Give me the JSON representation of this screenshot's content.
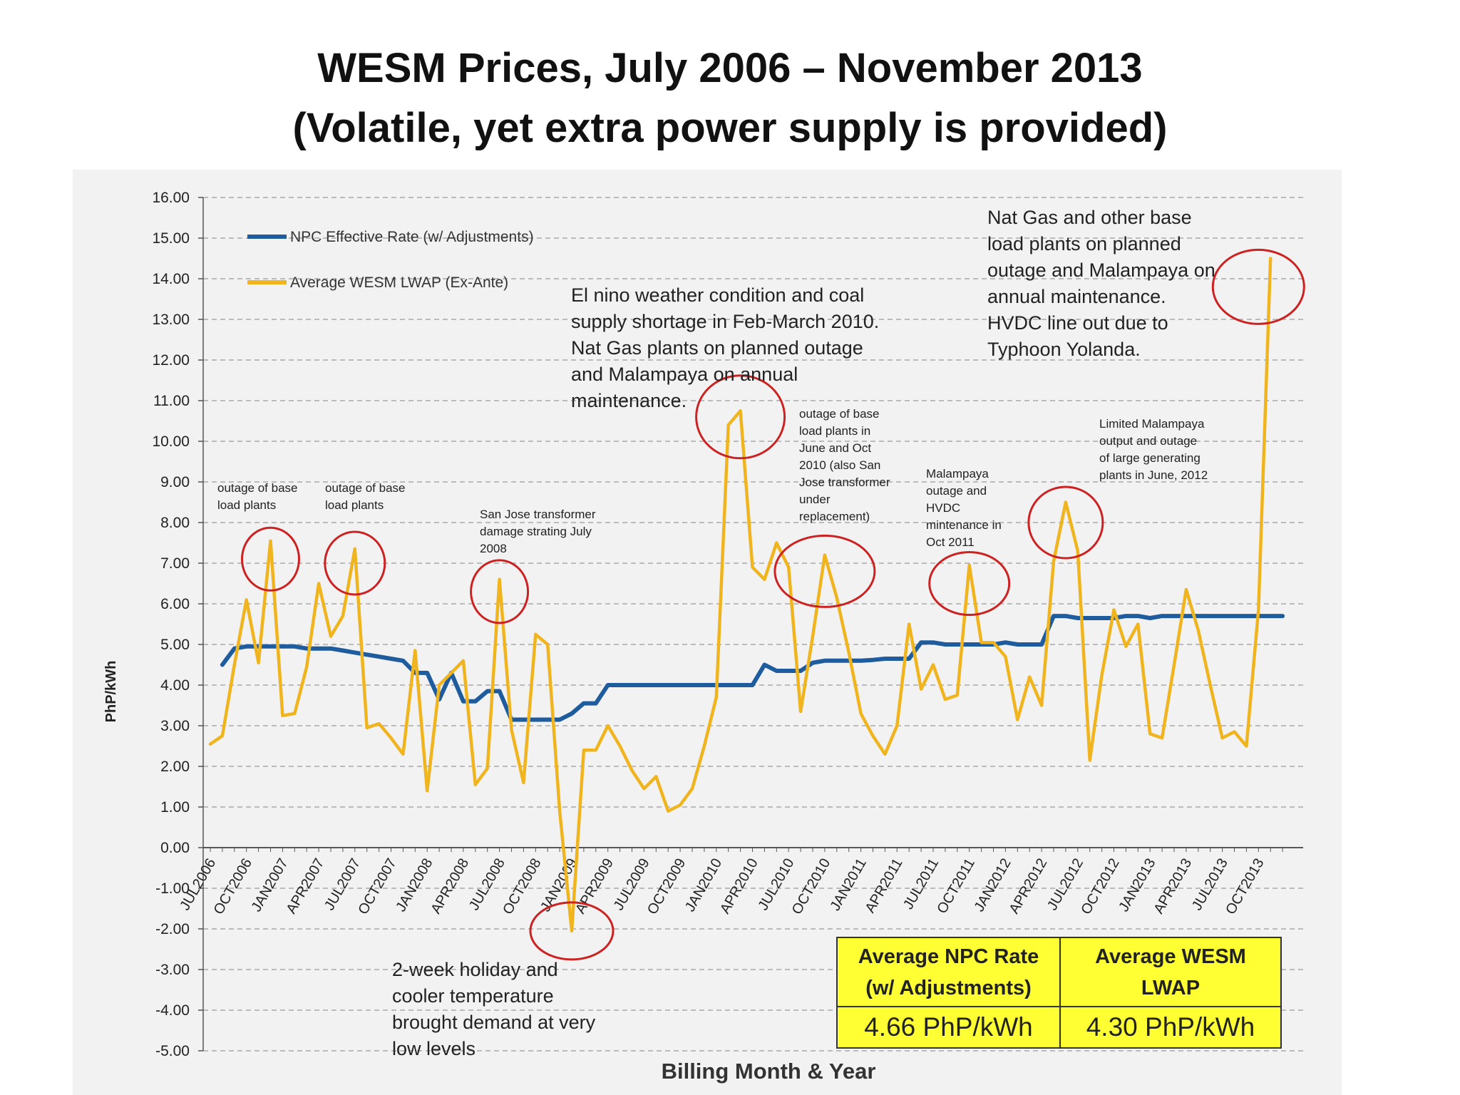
{
  "title": {
    "line1": "WESM Prices, July 2006 – November 2013",
    "line2": "(Volatile, yet extra power supply is provided)"
  },
  "colors": {
    "npc": "#1f5c9e",
    "wesm": "#f0b41e",
    "circle": "#cc2222",
    "table_bg": "#ffff33"
  },
  "chart_data": {
    "type": "line",
    "title": "WESM Prices, July 2006 – November 2013",
    "xlabel": "Billing Month & Year",
    "ylabel": "PhP/kWh",
    "ylim": [
      -5,
      16
    ],
    "yticks": [
      "16.00",
      "15.00",
      "14.00",
      "13.00",
      "12.00",
      "11.00",
      "10.00",
      "9.00",
      "8.00",
      "7.00",
      "6.00",
      "5.00",
      "4.00",
      "3.00",
      "2.00",
      "1.00",
      "0.00",
      "-1.00",
      "-2.00",
      "-3.00",
      "-4.00",
      "-5.00"
    ],
    "x_tick_labels": [
      {
        "index": 0,
        "label": "JUL2006"
      },
      {
        "index": 3,
        "label": "OCT2006"
      },
      {
        "index": 6,
        "label": "JAN2007"
      },
      {
        "index": 9,
        "label": "APR2007"
      },
      {
        "index": 12,
        "label": "JUL2007"
      },
      {
        "index": 15,
        "label": "OCT2007"
      },
      {
        "index": 18,
        "label": "JAN2008"
      },
      {
        "index": 21,
        "label": "APR2008"
      },
      {
        "index": 24,
        "label": "JUL2008"
      },
      {
        "index": 27,
        "label": "OCT2008"
      },
      {
        "index": 30,
        "label": "JAN2009"
      },
      {
        "index": 33,
        "label": "APR2009"
      },
      {
        "index": 36,
        "label": "JUL2009"
      },
      {
        "index": 39,
        "label": "OCT2009"
      },
      {
        "index": 42,
        "label": "JAN2010"
      },
      {
        "index": 45,
        "label": "APR2010"
      },
      {
        "index": 48,
        "label": "JUL2010"
      },
      {
        "index": 51,
        "label": "OCT2010"
      },
      {
        "index": 54,
        "label": "JAN2011"
      },
      {
        "index": 57,
        "label": "APR2011"
      },
      {
        "index": 60,
        "label": "JUL2011"
      },
      {
        "index": 63,
        "label": "OCT2011"
      },
      {
        "index": 66,
        "label": "JAN2012"
      },
      {
        "index": 69,
        "label": "APR2012"
      },
      {
        "index": 72,
        "label": "JUL2012"
      },
      {
        "index": 75,
        "label": "OCT2012"
      },
      {
        "index": 78,
        "label": "JAN2013"
      },
      {
        "index": 81,
        "label": "APR2013"
      },
      {
        "index": 84,
        "label": "JUL2013"
      },
      {
        "index": 87,
        "label": "OCT2013"
      }
    ],
    "legend_position": "top-left",
    "grid": "horizontal dashed",
    "series": [
      {
        "name": "NPC Effective Rate (w/ Adjustments)",
        "start": 1,
        "values": [
          4.5,
          4.9,
          4.95,
          4.95,
          4.95,
          4.95,
          4.95,
          4.9,
          4.9,
          4.9,
          4.85,
          4.8,
          4.75,
          4.7,
          4.65,
          4.6,
          4.3,
          4.3,
          3.65,
          4.3,
          3.6,
          3.6,
          3.85,
          3.85,
          3.15,
          3.15,
          3.15,
          3.15,
          3.15,
          3.3,
          3.55,
          3.55,
          4.0,
          4.0,
          4.0,
          4.0,
          4.0,
          4.0,
          4.0,
          4.0,
          4.0,
          4.0,
          4.0,
          4.0,
          4.0,
          4.5,
          4.35,
          4.35,
          4.35,
          4.55,
          4.6,
          4.6,
          4.6,
          4.6,
          4.62,
          4.65,
          4.65,
          4.65,
          5.05,
          5.05,
          5.0,
          5.0,
          5.0,
          5.0,
          5.0,
          5.05,
          5.0,
          5.0,
          5.0,
          5.7,
          5.7,
          5.65,
          5.65,
          5.65,
          5.65,
          5.7,
          5.7,
          5.65,
          5.7,
          5.7,
          5.7,
          5.7,
          5.7,
          5.7,
          5.7,
          5.7,
          5.7,
          5.7,
          5.7
        ]
      },
      {
        "name": "Average WESM LWAP (Ex-Ante)",
        "start": 0,
        "values": [
          2.55,
          2.75,
          4.5,
          6.1,
          4.55,
          7.55,
          3.25,
          3.3,
          4.45,
          6.5,
          5.2,
          5.7,
          7.35,
          2.95,
          3.05,
          2.7,
          2.3,
          4.85,
          1.4,
          4.0,
          4.3,
          4.6,
          1.55,
          1.95,
          6.6,
          2.9,
          1.6,
          5.25,
          5.0,
          0.9,
          -2.05,
          2.4,
          2.4,
          3.0,
          2.5,
          1.9,
          1.45,
          1.75,
          0.9,
          1.05,
          1.45,
          2.5,
          3.7,
          10.4,
          10.75,
          6.9,
          6.6,
          7.5,
          6.9,
          3.35,
          5.2,
          7.2,
          6.15,
          4.8,
          3.3,
          2.75,
          2.3,
          3.0,
          5.5,
          3.9,
          4.5,
          3.65,
          3.75,
          6.95,
          5.05,
          5.05,
          4.7,
          3.15,
          4.2,
          3.5,
          7.05,
          8.5,
          7.3,
          2.15,
          4.25,
          5.85,
          4.95,
          5.5,
          2.8,
          2.7,
          4.5,
          6.35,
          5.35,
          4.0,
          2.7,
          2.85,
          2.5,
          5.85,
          14.5
        ]
      }
    ],
    "annotations": [
      "outage of base\nload plants",
      "outage of base\nload plants",
      "San Jose transformer\ndamage strating July\n2008",
      "El nino weather condition  and coal\nsupply shortage in Feb-March  2010.\nNat Gas plants on planned outage\nand Malampaya on annual\nmaintenance.",
      "outage of base\nload plants in\nJune and Oct\n2010 (also San\nJose transformer\nunder\nreplacement)",
      "Malampaya\noutage and\nHVDC\nmintenance in\nOct 2011",
      "Limited Malampaya\noutput  and outage\nof large generating\nplants in June, 2012",
      "Nat Gas and other base\nload plants on planned\noutage and Malampaya on\nannual maintenance.\nHVDC line out due to\nTyphoon Yolanda.",
      "2-week holiday and\ncooler temperature\nbrought demand at very\nlow levels"
    ]
  },
  "summary_table": {
    "npc_header": "Average NPC Rate\n(w/ Adjustments)",
    "wesm_header": "Average WESM\nLWAP",
    "npc_value": "4.66 PhP/kWh",
    "wesm_value": "4.30 PhP/kWh"
  }
}
